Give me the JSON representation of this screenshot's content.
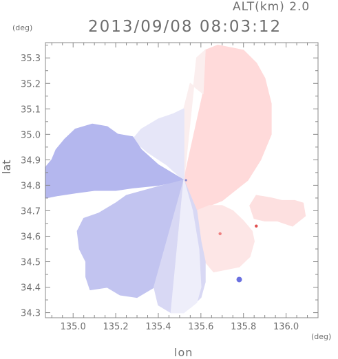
{
  "header": {
    "alt_label": "ALT(km) 2.0",
    "timestamp": "2013/09/08 08:03:12"
  },
  "chart_data": {
    "type": "heatmap",
    "title": "2013/09/08 08:03:12",
    "subtitle": "ALT(km) 2.0",
    "xlabel": "lon",
    "ylabel": "lat",
    "x_unit": "(deg)",
    "y_unit": "(deg)",
    "xlim": [
      134.87,
      136.15
    ],
    "ylim": [
      34.28,
      35.36
    ],
    "x_ticks": [
      135.0,
      135.2,
      135.4,
      135.6,
      135.8,
      136.0
    ],
    "x_tick_labels": [
      "135.0",
      "135.2",
      "135.4",
      "135.6",
      "135.8",
      "136.0"
    ],
    "y_ticks": [
      34.3,
      34.4,
      34.5,
      34.6,
      34.7,
      34.8,
      34.9,
      35.0,
      35.1,
      35.2,
      35.3
    ],
    "y_tick_labels": [
      "34.3",
      "34.4",
      "34.5",
      "34.6",
      "34.7",
      "34.8",
      "34.9",
      "35.0",
      "35.1",
      "35.2",
      "35.3"
    ],
    "radar_center": [
      135.53,
      34.82
    ],
    "grid": false,
    "colors": {
      "approaching": "#aab0ee",
      "receding": "#ffd2d2",
      "neutral": "#f4f2fa",
      "axis": "#888888"
    },
    "regions": [
      {
        "name": "northeast-receding",
        "color": "#ffdada",
        "points": [
          [
            135.52,
            34.82
          ],
          [
            135.61,
            35.16
          ],
          [
            135.62,
            35.33
          ],
          [
            135.68,
            35.35
          ],
          [
            135.8,
            35.33
          ],
          [
            135.86,
            35.28
          ],
          [
            135.9,
            35.22
          ],
          [
            135.93,
            35.12
          ],
          [
            135.93,
            35.0
          ],
          [
            135.88,
            34.9
          ],
          [
            135.82,
            34.82
          ],
          [
            135.76,
            34.78
          ],
          [
            135.7,
            34.74
          ],
          [
            135.64,
            34.72
          ],
          [
            135.58,
            34.7
          ]
        ]
      },
      {
        "name": "north-neutral",
        "color": "#fbeeee",
        "points": [
          [
            135.52,
            34.82
          ],
          [
            135.52,
            35.1
          ],
          [
            135.55,
            35.2
          ],
          [
            135.61,
            35.16
          ],
          [
            135.62,
            35.33
          ],
          [
            135.58,
            35.3
          ]
        ]
      },
      {
        "name": "east-lobe",
        "color": "#fde0e0",
        "points": [
          [
            135.83,
            34.72
          ],
          [
            135.86,
            34.76
          ],
          [
            135.93,
            34.75
          ],
          [
            135.98,
            34.74
          ],
          [
            136.04,
            34.74
          ],
          [
            136.08,
            34.73
          ],
          [
            136.09,
            34.68
          ],
          [
            136.03,
            34.64
          ],
          [
            135.96,
            34.66
          ],
          [
            135.9,
            34.66
          ],
          [
            135.85,
            34.67
          ]
        ]
      },
      {
        "name": "southeast-receding",
        "color": "#fde6e6",
        "points": [
          [
            135.58,
            34.7
          ],
          [
            135.64,
            34.72
          ],
          [
            135.7,
            34.72
          ],
          [
            135.75,
            34.7
          ],
          [
            135.8,
            34.66
          ],
          [
            135.84,
            34.62
          ],
          [
            135.85,
            34.58
          ],
          [
            135.83,
            34.52
          ],
          [
            135.78,
            34.48
          ],
          [
            135.72,
            34.47
          ],
          [
            135.66,
            34.46
          ],
          [
            135.62,
            34.5
          ],
          [
            135.6,
            34.56
          ]
        ]
      },
      {
        "name": "north-approaching",
        "color": "#e6e6f8",
        "points": [
          [
            135.52,
            34.82
          ],
          [
            135.52,
            35.1
          ],
          [
            135.47,
            35.08
          ],
          [
            135.4,
            35.06
          ],
          [
            135.32,
            35.02
          ],
          [
            135.28,
            34.98
          ],
          [
            135.35,
            34.93
          ],
          [
            135.44,
            34.88
          ]
        ]
      },
      {
        "name": "west-approaching",
        "color": "#b4b7ee",
        "points": [
          [
            135.52,
            34.82
          ],
          [
            135.4,
            34.88
          ],
          [
            135.32,
            34.94
          ],
          [
            135.28,
            34.99
          ],
          [
            135.21,
            35.0
          ],
          [
            135.16,
            35.03
          ],
          [
            135.09,
            35.04
          ],
          [
            135.01,
            35.02
          ],
          [
            134.96,
            34.98
          ],
          [
            134.92,
            34.94
          ],
          [
            134.9,
            34.9
          ],
          [
            134.87,
            34.87
          ],
          [
            134.87,
            34.75
          ],
          [
            134.93,
            34.76
          ],
          [
            135.01,
            34.77
          ],
          [
            135.1,
            34.78
          ],
          [
            135.2,
            34.78
          ],
          [
            135.28,
            34.79
          ],
          [
            135.4,
            34.8
          ]
        ]
      },
      {
        "name": "southwest-approaching",
        "color": "#c2c4f0",
        "points": [
          [
            135.52,
            34.82
          ],
          [
            135.38,
            34.79
          ],
          [
            135.25,
            34.76
          ],
          [
            135.2,
            34.73
          ],
          [
            135.12,
            34.69
          ],
          [
            135.05,
            34.67
          ],
          [
            135.02,
            34.62
          ],
          [
            135.03,
            34.55
          ],
          [
            135.06,
            34.5
          ],
          [
            135.06,
            34.44
          ],
          [
            135.08,
            34.39
          ],
          [
            135.16,
            34.4
          ],
          [
            135.22,
            34.37
          ],
          [
            135.3,
            34.36
          ],
          [
            135.38,
            34.4
          ]
        ]
      },
      {
        "name": "south-approaching",
        "color": "#d8d8f4",
        "points": [
          [
            135.52,
            34.82
          ],
          [
            135.38,
            34.4
          ],
          [
            135.4,
            34.33
          ],
          [
            135.46,
            34.3
          ],
          [
            135.55,
            34.32
          ],
          [
            135.6,
            34.36
          ],
          [
            135.62,
            34.42
          ],
          [
            135.62,
            34.5
          ],
          [
            135.6,
            34.58
          ],
          [
            135.58,
            34.7
          ]
        ]
      },
      {
        "name": "south-neutral",
        "color": "#eeeefa",
        "points": [
          [
            135.52,
            34.82
          ],
          [
            135.46,
            34.3
          ],
          [
            135.52,
            34.3
          ],
          [
            135.58,
            34.34
          ],
          [
            135.6,
            34.4
          ],
          [
            135.59,
            34.55
          ],
          [
            135.56,
            34.7
          ]
        ]
      }
    ],
    "features": [
      {
        "name": "approaching-cell",
        "lon": 135.78,
        "lat": 34.43,
        "color": "#6a70e0"
      },
      {
        "name": "receding-cell",
        "lon": 135.86,
        "lat": 34.64,
        "color": "#e05050"
      },
      {
        "name": "receding-speck",
        "lon": 135.69,
        "lat": 34.61,
        "color": "#ee8080"
      }
    ]
  }
}
